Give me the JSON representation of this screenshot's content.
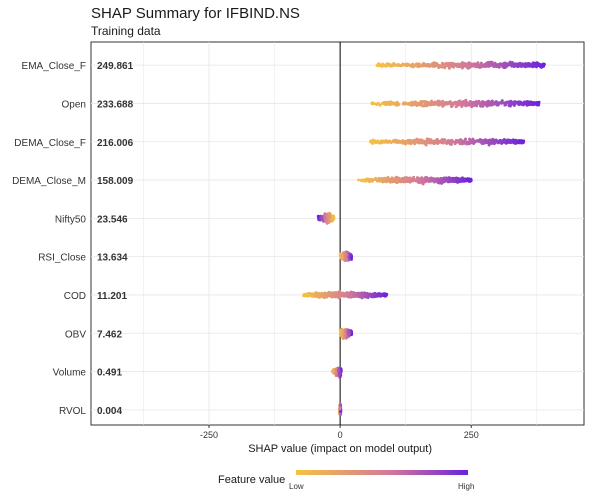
{
  "title": "SHAP Summary for IFBIND.NS",
  "subtitle": "Training data",
  "legend": {
    "title": "Feature value",
    "low_label": "Low",
    "high_label": "High"
  },
  "colors": {
    "low": "#f5c242",
    "mid": "#d2789a",
    "high": "#6a22dd",
    "grid": "#e6e6e6",
    "zero_line": "#000000"
  },
  "chart_data": {
    "type": "scatter",
    "subtype": "shap-beeswarm",
    "xlabel": "SHAP value (impact on model output)",
    "xlim": [
      -475,
      465
    ],
    "xticks": [
      -250,
      0,
      250
    ],
    "xtick_labels": [
      "-250",
      "0",
      "250"
    ],
    "grid": true,
    "legend_placement": "bottom",
    "features": [
      {
        "name": "EMA_Close_F",
        "mean_abs_shap": "249.861",
        "min": 70,
        "max": 390,
        "cluster": 270,
        "dir": 1
      },
      {
        "name": "Open",
        "mean_abs_shap": "233.688",
        "min": 58,
        "max": 380,
        "cluster": 250,
        "dir": 1
      },
      {
        "name": "DEMA_Close_F",
        "mean_abs_shap": "216.006",
        "min": 55,
        "max": 350,
        "cluster": 230,
        "dir": 1
      },
      {
        "name": "DEMA_Close_M",
        "mean_abs_shap": "158.009",
        "min": 35,
        "max": 250,
        "cluster": 150,
        "dir": 1
      },
      {
        "name": "Nifty50",
        "mean_abs_shap": "23.546",
        "min": -42,
        "max": -12,
        "cluster": -25,
        "dir": -1
      },
      {
        "name": "RSI_Close",
        "mean_abs_shap": "13.634",
        "min": 0,
        "max": 22,
        "cluster": 10,
        "dir": 1
      },
      {
        "name": "COD",
        "mean_abs_shap": "11.201",
        "min": -70,
        "max": 90,
        "cluster": 0,
        "dir": 1
      },
      {
        "name": "OBV",
        "mean_abs_shap": "7.462",
        "min": 0,
        "max": 22,
        "cluster": 8,
        "dir": 1
      },
      {
        "name": "Volume",
        "mean_abs_shap": "0.491",
        "min": -15,
        "max": 2,
        "cluster": 0,
        "dir": 1
      },
      {
        "name": "RVOL",
        "mean_abs_shap": "0.004",
        "min": -1,
        "max": 1,
        "cluster": 0,
        "dir": 1
      }
    ]
  }
}
